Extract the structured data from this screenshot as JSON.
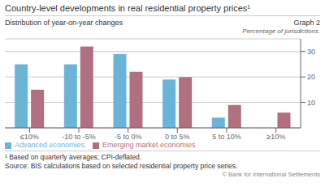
{
  "chart_data": {
    "type": "bar",
    "title": "Country-level developments in real residential property prices¹",
    "subtitle": "Distribution of year-on-year changes",
    "ylabel": "Percentage of jurisdictions",
    "annotations": [
      "Graph 2",
      "¹  Based on quarterly averages; CPI-deflated.",
      "Source: BIS calculations based on selected residential property price series.",
      "© Bank for International Settlements"
    ],
    "categories": [
      "≤10%",
      "-10 to -5%",
      "-5 to 0%",
      "0 to 5%",
      "5 to 10%",
      "≥10%"
    ],
    "series": [
      {
        "name": "Advanced economies",
        "color": "#6ab4d8",
        "values": [
          25,
          25,
          29,
          19,
          4,
          0
        ]
      },
      {
        "name": "Emerging market economies",
        "color": "#b07080",
        "values": [
          15,
          32,
          22,
          20,
          9,
          6
        ]
      }
    ],
    "ylim": [
      0,
      35
    ],
    "yticks": [
      10,
      20,
      30
    ],
    "grid": true,
    "legend": "lower left"
  }
}
